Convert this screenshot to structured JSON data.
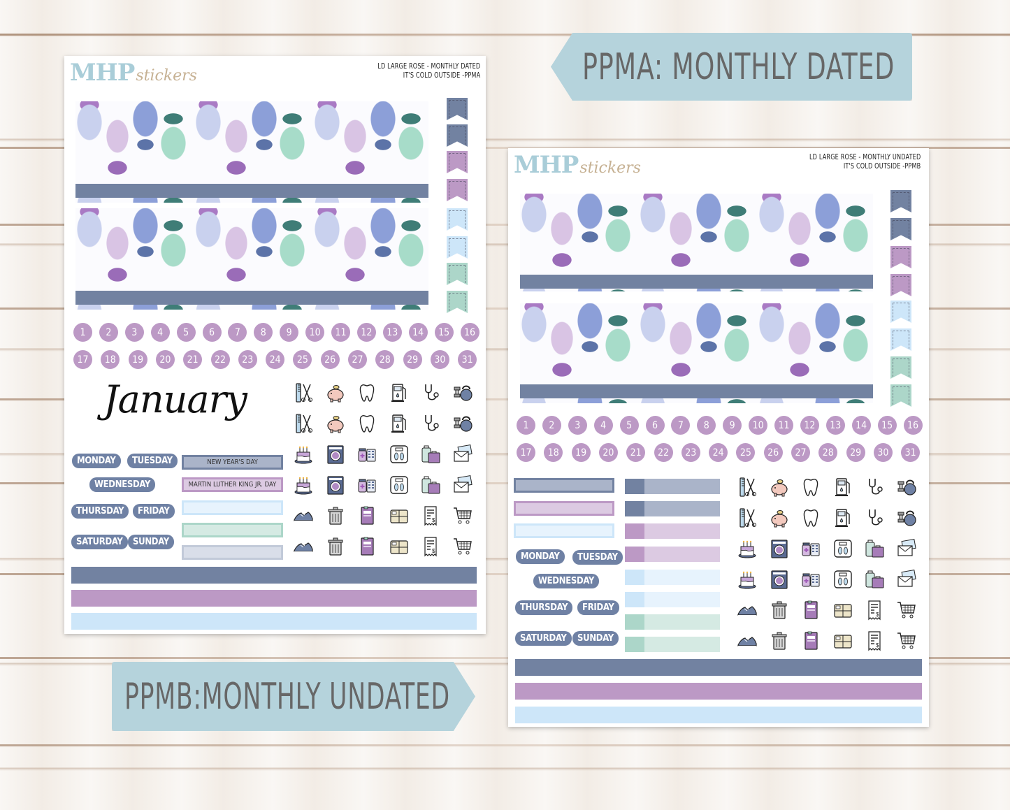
{
  "background": {
    "style": "white-washed wood planks"
  },
  "banners": {
    "ppma": {
      "text": "PPMA: MONTHLY DATED",
      "color": "#b5d3dc",
      "text_color": "#676767"
    },
    "ppmb": {
      "text": "PPMB:MONTHLY UNDATED",
      "color": "#b5d3dc",
      "text_color": "#676767"
    }
  },
  "colors": {
    "slate": "#7282a1",
    "slate_light": "#aab4c9",
    "purple": "#bc99c5",
    "purple_light": "#dccae2",
    "blue": "#cde6f9",
    "blue_light": "#e7f3fd",
    "mint": "#acd6c9",
    "mint_light": "#d5eae3",
    "logo_blue": "#a9cdd8",
    "logo_tan": "#c6b193"
  },
  "sheet_a": {
    "logo": {
      "mhp": "MHP",
      "stickers": "stickers"
    },
    "title_line1": "LD LARGE ROSE - MONTHLY DATED",
    "title_line2": "IT'S COLD OUTSIDE -PPMA",
    "month": "January",
    "days": [
      "MONDAY",
      "TUESDAY",
      "WEDNESDAY",
      "THURSDAY",
      "FRIDAY",
      "SATURDAY",
      "SUNDAY"
    ],
    "holidays": [
      "NEW YEAR'S DAY",
      "MARTIN LUTHER KING JR. DAY",
      "",
      "",
      ""
    ],
    "dates_row1": [
      "1",
      "2",
      "3",
      "4",
      "5",
      "6",
      "7",
      "8",
      "9",
      "10",
      "11",
      "12",
      "13",
      "14",
      "15",
      "16"
    ],
    "dates_row2": [
      "17",
      "18",
      "19",
      "20",
      "21",
      "22",
      "23",
      "24",
      "25",
      "26",
      "27",
      "28",
      "29",
      "30",
      "31"
    ]
  },
  "sheet_b": {
    "logo": {
      "mhp": "MHP",
      "stickers": "stickers"
    },
    "title_line1": "LD LARGE ROSE - MONTHLY UNDATED",
    "title_line2": "IT'S COLD OUTSIDE -PPMB",
    "days": [
      "MONDAY",
      "TUESDAY",
      "WEDNESDAY",
      "THURSDAY",
      "FRIDAY",
      "SATURDAY",
      "SUNDAY"
    ],
    "dates_row1": [
      "1",
      "2",
      "3",
      "4",
      "5",
      "6",
      "7",
      "8",
      "9",
      "10",
      "11",
      "12",
      "13",
      "14",
      "15",
      "16"
    ],
    "dates_row2": [
      "17",
      "18",
      "19",
      "20",
      "21",
      "22",
      "23",
      "24",
      "25",
      "26",
      "27",
      "28",
      "29",
      "30",
      "31"
    ]
  },
  "icons": [
    [
      "comb-scissors-icon",
      "piggy-bank-icon",
      "tooth-icon",
      "gas-pump-icon",
      "stethoscope-icon",
      "dumbbell-kettlebell-icon"
    ],
    [
      "comb-scissors-icon",
      "piggy-bank-icon",
      "tooth-icon",
      "gas-pump-icon",
      "stethoscope-icon",
      "dumbbell-kettlebell-icon"
    ],
    [
      "birthday-cake-icon",
      "washing-machine-icon",
      "medicine-icon",
      "scale-icon",
      "luggage-icon",
      "mail-icon"
    ],
    [
      "birthday-cake-icon",
      "washing-machine-icon",
      "medicine-icon",
      "scale-icon",
      "luggage-icon",
      "mail-icon"
    ],
    [
      "sneaker-icon",
      "trash-can-icon",
      "passport-icon",
      "package-icon",
      "receipt-icon",
      "shopping-cart-icon"
    ],
    [
      "sneaker-icon",
      "trash-can-icon",
      "passport-icon",
      "package-icon",
      "receipt-icon",
      "shopping-cart-icon"
    ]
  ]
}
